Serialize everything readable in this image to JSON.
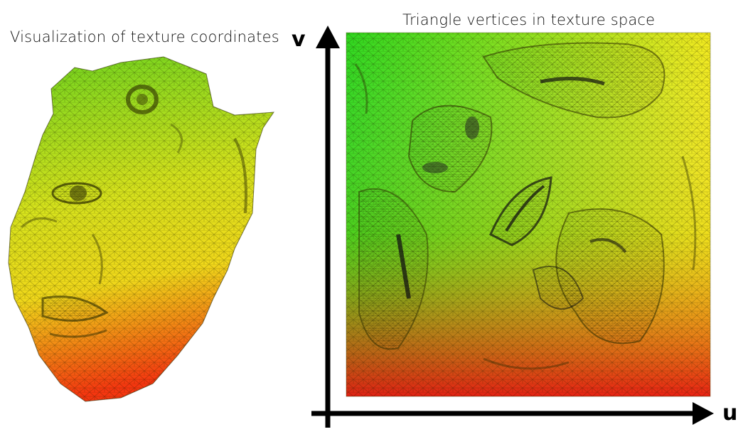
{
  "left_panel": {
    "caption": "Visualization of texture coordinates",
    "gradient": {
      "top": "#6ed41f",
      "middle": "#f0e41c",
      "bottom": "#f5360f"
    }
  },
  "right_panel": {
    "caption": "Triangle vertices in texture space",
    "axis_u_label": "u",
    "axis_v_label": "v",
    "gradient": {
      "top_left": "#2fd81f",
      "top_right": "#f2ea1e",
      "bottom_left": "#b0d21c",
      "bottom_right": "#e81712"
    }
  }
}
